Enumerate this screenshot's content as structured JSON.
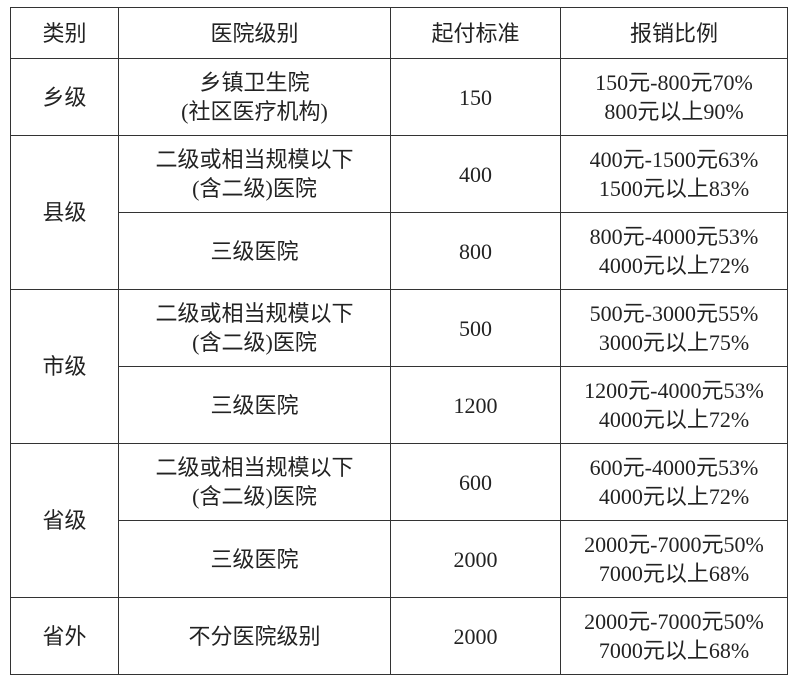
{
  "headers": [
    "类别",
    "医院级别",
    "起付标准",
    "报销比例"
  ],
  "groups": [
    {
      "category": "乡级",
      "rows": [
        {
          "hospital": [
            "乡镇卫生院",
            "(社区医疗机构)"
          ],
          "deductible": "150",
          "ratio": [
            "150元-800元70%",
            "800元以上90%"
          ]
        }
      ]
    },
    {
      "category": "县级",
      "rows": [
        {
          "hospital": [
            "二级或相当规模以下",
            "(含二级)医院"
          ],
          "deductible": "400",
          "ratio": [
            "400元-1500元63%",
            "1500元以上83%"
          ]
        },
        {
          "hospital": [
            "三级医院"
          ],
          "deductible": "800",
          "ratio": [
            "800元-4000元53%",
            "4000元以上72%"
          ]
        }
      ]
    },
    {
      "category": "市级",
      "rows": [
        {
          "hospital": [
            "二级或相当规模以下",
            "(含二级)医院"
          ],
          "deductible": "500",
          "ratio": [
            "500元-3000元55%",
            "3000元以上75%"
          ]
        },
        {
          "hospital": [
            "三级医院"
          ],
          "deductible": "1200",
          "ratio": [
            "1200元-4000元53%",
            "4000元以上72%"
          ]
        }
      ]
    },
    {
      "category": "省级",
      "rows": [
        {
          "hospital": [
            "二级或相当规模以下",
            "(含二级)医院"
          ],
          "deductible": "600",
          "ratio": [
            "600元-4000元53%",
            "4000元以上72%"
          ]
        },
        {
          "hospital": [
            "三级医院"
          ],
          "deductible": "2000",
          "ratio": [
            "2000元-7000元50%",
            "7000元以上68%"
          ]
        }
      ]
    },
    {
      "category": "省外",
      "rows": [
        {
          "hospital": [
            "不分医院级别"
          ],
          "deductible": "2000",
          "ratio": [
            "2000元-7000元50%",
            "7000元以上68%"
          ]
        }
      ]
    }
  ]
}
